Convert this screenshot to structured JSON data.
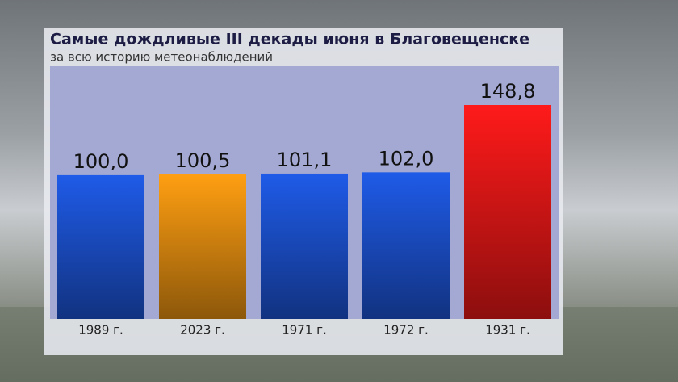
{
  "chart_data": {
    "type": "bar",
    "title": "Самые дождливые III декады июня в Благовещенске",
    "subtitle": "за всю историю метеонаблюдений",
    "categories": [
      "1989 г.",
      "2023 г.",
      "1971 г.",
      "1972 г.",
      "1931 г."
    ],
    "values": [
      100.0,
      100.5,
      101.1,
      102.0,
      148.8
    ],
    "value_labels": [
      "100,0",
      "100,5",
      "101,1",
      "102,0",
      "148,8"
    ],
    "colors": [
      "#1f5be8",
      "#ff9f12",
      "#1f5be8",
      "#1f5be8",
      "#ff1a1a"
    ]
  }
}
